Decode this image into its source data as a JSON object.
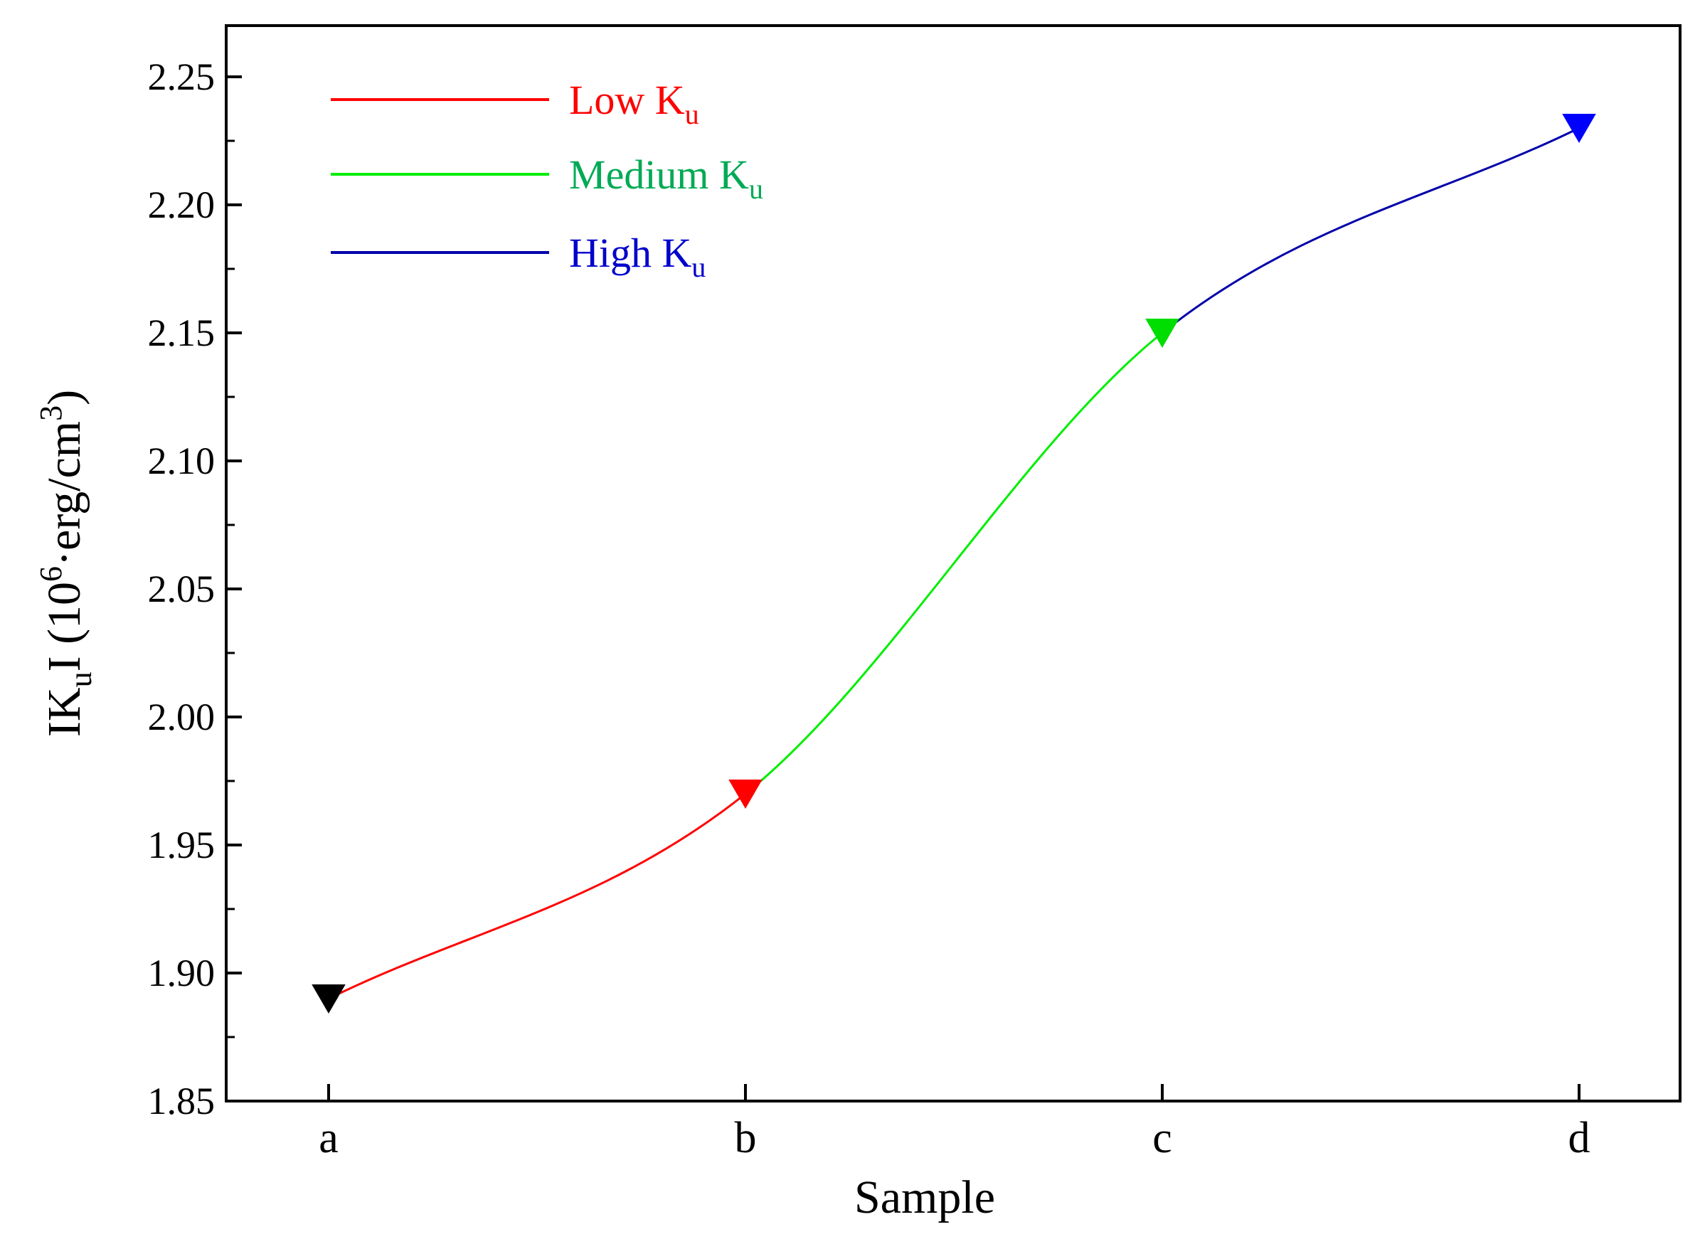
{
  "chart_data": {
    "type": "line",
    "xlabel": "Sample",
    "ylabel": {
      "prefix": "IK",
      "prefix_sub": "u",
      "middle": "I (10",
      "power": "6",
      "unit": "·erg/cm",
      "unit_power": "3",
      "suffix": ")"
    },
    "categories": [
      "a",
      "b",
      "c",
      "d"
    ],
    "ylim": [
      1.85,
      2.27
    ],
    "yticks": [
      "1.85",
      "1.90",
      "1.95",
      "2.00",
      "2.05",
      "2.10",
      "2.15",
      "2.20",
      "2.25"
    ],
    "points": [
      {
        "x": "a",
        "y": 1.89,
        "color": "#000000"
      },
      {
        "x": "b",
        "y": 1.97,
        "color": "#ff0000"
      },
      {
        "x": "c",
        "y": 2.15,
        "color": "#00dd00"
      },
      {
        "x": "d",
        "y": 2.23,
        "color": "#0000ff"
      }
    ],
    "series": [
      {
        "name": "Low K",
        "sub": "u",
        "from": "a",
        "to": "b",
        "color": "#ff0000",
        "text_color": "#ff0000"
      },
      {
        "name": "Medium K",
        "sub": "u",
        "from": "b",
        "to": "c",
        "color": "#00ee00",
        "text_color": "#00aa55"
      },
      {
        "name": "High K",
        "sub": "u",
        "from": "c",
        "to": "d",
        "color": "#0000aa",
        "text_color": "#0000cc"
      }
    ],
    "legend_position": "top-left",
    "grid": false
  }
}
